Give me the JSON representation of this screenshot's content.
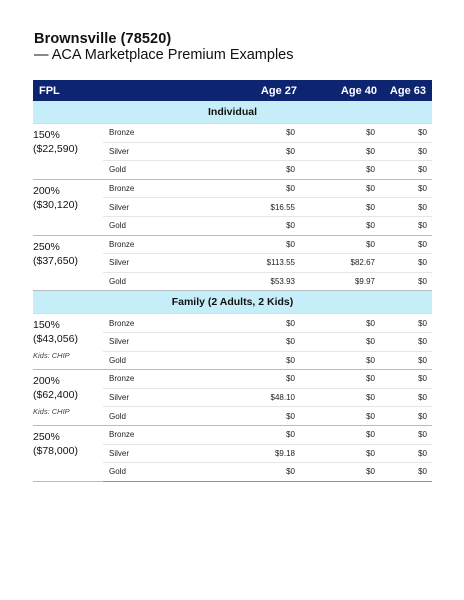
{
  "title": "Brownsville (78520)",
  "subtitle": "— ACA Marketplace Premium Examples",
  "header": {
    "fpl": "FPL",
    "age27": "Age 27",
    "age40": "Age 40",
    "age63": "Age 63"
  },
  "sections": [
    {
      "label": "Individual",
      "groups": [
        {
          "pct": "150%",
          "income": "($22,590)",
          "note": "",
          "rows": [
            {
              "tier": "Bronze",
              "a27": "$0",
              "a40": "$0",
              "a63": "$0"
            },
            {
              "tier": "Silver",
              "a27": "$0",
              "a40": "$0",
              "a63": "$0"
            },
            {
              "tier": "Gold",
              "a27": "$0",
              "a40": "$0",
              "a63": "$0"
            }
          ]
        },
        {
          "pct": "200%",
          "income": "($30,120)",
          "note": "",
          "rows": [
            {
              "tier": "Bronze",
              "a27": "$0",
              "a40": "$0",
              "a63": "$0"
            },
            {
              "tier": "Silver",
              "a27": "$16.55",
              "a40": "$0",
              "a63": "$0"
            },
            {
              "tier": "Gold",
              "a27": "$0",
              "a40": "$0",
              "a63": "$0"
            }
          ]
        },
        {
          "pct": "250%",
          "income": "($37,650)",
          "note": "",
          "rows": [
            {
              "tier": "Bronze",
              "a27": "$0",
              "a40": "$0",
              "a63": "$0"
            },
            {
              "tier": "Silver",
              "a27": "$113.55",
              "a40": "$82.67",
              "a63": "$0"
            },
            {
              "tier": "Gold",
              "a27": "$53.93",
              "a40": "$9.97",
              "a63": "$0"
            }
          ]
        }
      ]
    },
    {
      "label": "Family (2 Adults, 2 Kids)",
      "groups": [
        {
          "pct": "150%",
          "income": "($43,056)",
          "note": "Kids: CHIP",
          "rows": [
            {
              "tier": "Bronze",
              "a27": "$0",
              "a40": "$0",
              "a63": "$0"
            },
            {
              "tier": "Silver",
              "a27": "$0",
              "a40": "$0",
              "a63": "$0"
            },
            {
              "tier": "Gold",
              "a27": "$0",
              "a40": "$0",
              "a63": "$0"
            }
          ]
        },
        {
          "pct": "200%",
          "income": "($62,400)",
          "note": "Kids: CHIP",
          "rows": [
            {
              "tier": "Bronze",
              "a27": "$0",
              "a40": "$0",
              "a63": "$0"
            },
            {
              "tier": "Silver",
              "a27": "$48.10",
              "a40": "$0",
              "a63": "$0"
            },
            {
              "tier": "Gold",
              "a27": "$0",
              "a40": "$0",
              "a63": "$0"
            }
          ]
        },
        {
          "pct": "250%",
          "income": "($78,000)",
          "note": "",
          "rows": [
            {
              "tier": "Bronze",
              "a27": "$0",
              "a40": "$0",
              "a63": "$0"
            },
            {
              "tier": "Silver",
              "a27": "$9.18",
              "a40": "$0",
              "a63": "$0"
            },
            {
              "tier": "Gold",
              "a27": "$0",
              "a40": "$0",
              "a63": "$0"
            }
          ]
        }
      ]
    }
  ]
}
